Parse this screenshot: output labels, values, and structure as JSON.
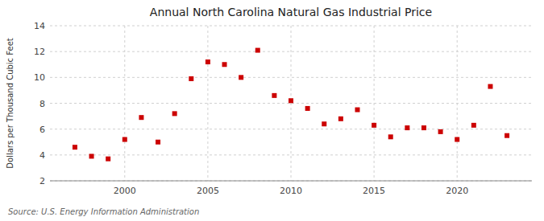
{
  "chart_data": {
    "type": "scatter",
    "title": "Annual North Carolina Natural Gas Industrial Price",
    "ylabel": "Dollars per Thousand Cubic Feet",
    "source": "Source: U.S. Energy Information Administration",
    "x": [
      1997,
      1998,
      1999,
      2000,
      2001,
      2002,
      2003,
      2004,
      2005,
      2006,
      2007,
      2008,
      2009,
      2010,
      2011,
      2012,
      2013,
      2014,
      2015,
      2016,
      2017,
      2018,
      2019,
      2020,
      2021,
      2022,
      2023
    ],
    "values": [
      4.6,
      3.9,
      3.7,
      5.2,
      6.9,
      5.0,
      7.2,
      9.9,
      11.2,
      11.0,
      10.0,
      12.1,
      8.6,
      8.2,
      7.6,
      6.4,
      6.8,
      7.5,
      6.3,
      5.4,
      6.1,
      6.1,
      5.8,
      5.2,
      6.3,
      9.3,
      5.5
    ],
    "color": "#cc0000",
    "marker": "square",
    "xlim": [
      1995.5,
      2024.5
    ],
    "ylim": [
      2,
      14
    ],
    "xticks": [
      2000,
      2005,
      2010,
      2015,
      2020
    ],
    "yticks": [
      2,
      4,
      6,
      8,
      10,
      12,
      14
    ],
    "grid": true
  }
}
